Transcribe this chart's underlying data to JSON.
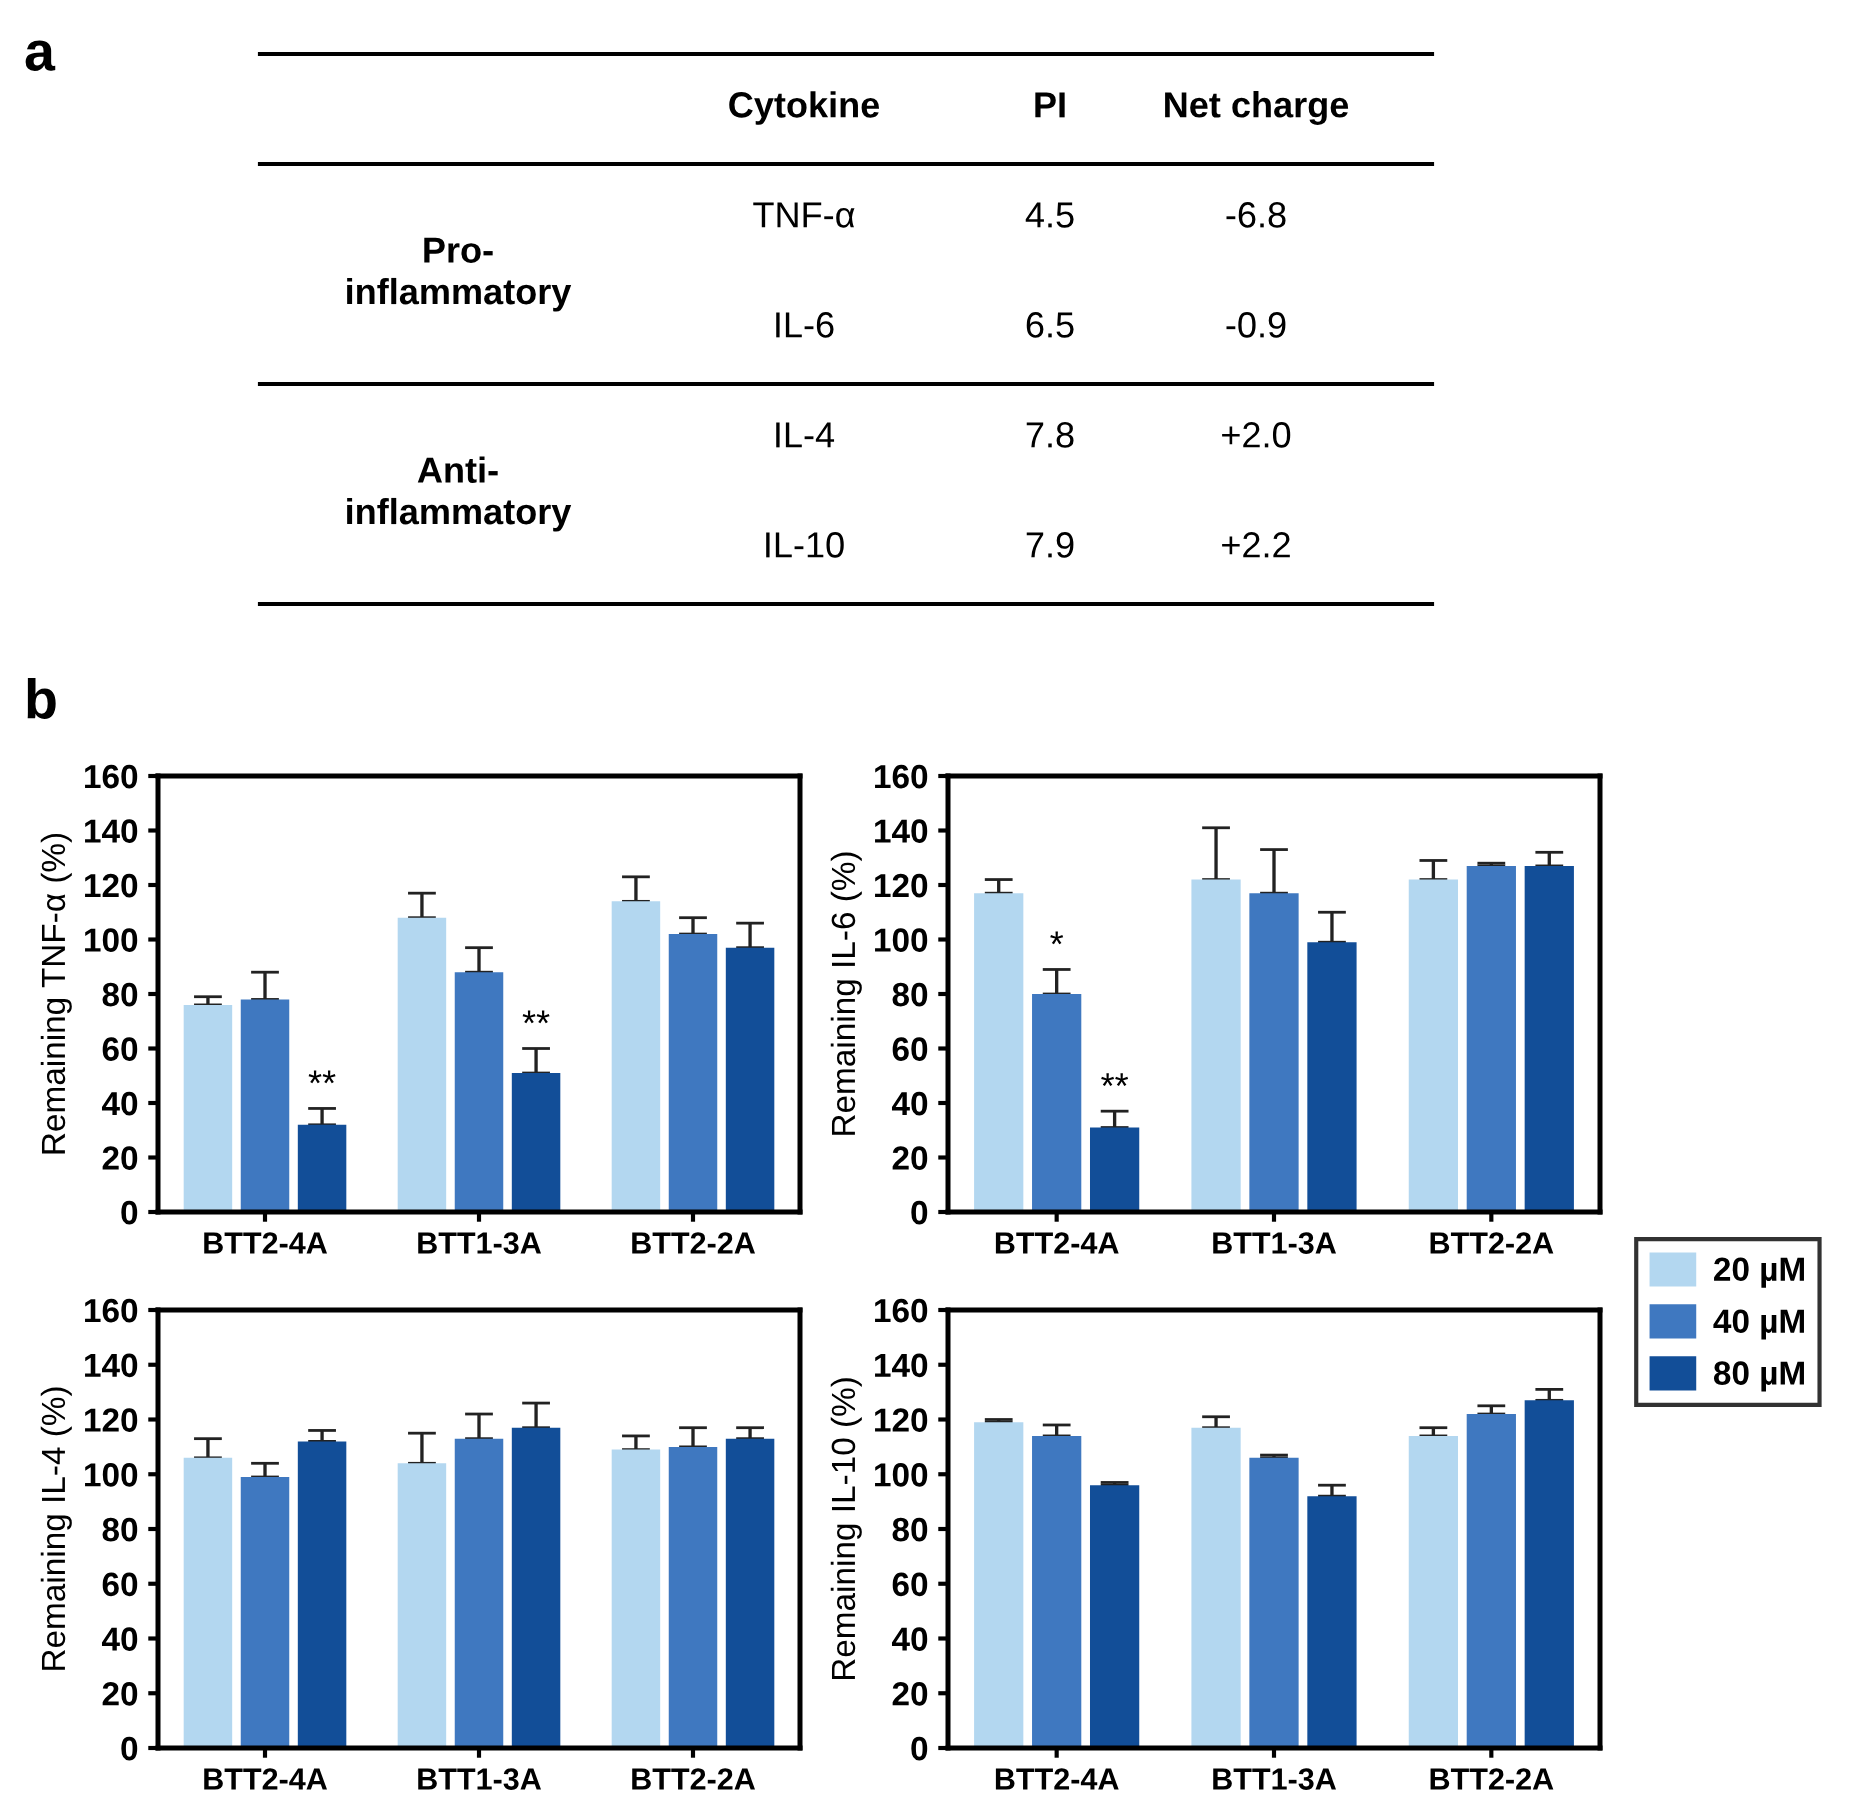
{
  "chart_data": [
    {
      "type": "other",
      "title": "a",
      "annotations": [
        "Cytokine",
        "PI",
        "Net charge",
        "Pro-\ninflammatory",
        "TNF-α",
        "4.5",
        "-6.8",
        "IL-6",
        "6.5",
        "-0.9",
        "Anti-\ninflammatory",
        "IL-4",
        "7.8",
        "+2.0",
        "IL-10",
        "7.9",
        "+2.2"
      ]
    },
    {
      "type": "bar",
      "title": "b",
      "ylabel": "Remaining TNF-α (%)",
      "categories": [
        "BTT2-4A",
        "BTT1-3A",
        "BTT2-2A"
      ],
      "ylim": [
        0,
        160
      ],
      "yticks": [
        0,
        20,
        40,
        60,
        80,
        100,
        120,
        140,
        160
      ],
      "series": [
        {
          "color": "#b3d7f0",
          "values": [
            76,
            108,
            114
          ],
          "errors": [
            [
              76,
              79
            ],
            [
              108,
              117
            ],
            [
              114,
              123
            ]
          ]
        },
        {
          "color": "#3f78c0",
          "values": [
            78,
            88,
            102
          ],
          "errors": [
            [
              78,
              88
            ],
            [
              88,
              97
            ],
            [
              102,
              108
            ]
          ]
        },
        {
          "color": "#124e98",
          "values": [
            32,
            51,
            97
          ],
          "errors": [
            [
              32,
              38
            ],
            [
              51,
              60
            ],
            [
              97,
              106
            ]
          ]
        }
      ],
      "annotations": [
        "**",
        "**"
      ]
    },
    {
      "type": "bar",
      "ylabel": "Remaining IL-6 (%)",
      "categories": [
        "BTT2-4A",
        "BTT1-3A",
        "BTT2-2A"
      ],
      "ylim": [
        0,
        160
      ],
      "yticks": [
        0,
        20,
        40,
        60,
        80,
        100,
        120,
        140,
        160
      ],
      "series": [
        {
          "color": "#b3d7f0",
          "values": [
            117,
            122,
            122
          ],
          "errors": [
            [
              117,
              122
            ],
            [
              122,
              141
            ],
            [
              122,
              129
            ]
          ]
        },
        {
          "color": "#3f78c0",
          "values": [
            80,
            117,
            127
          ],
          "errors": [
            [
              80,
              89
            ],
            [
              117,
              133
            ],
            [
              127,
              128
            ]
          ]
        },
        {
          "color": "#124e98",
          "values": [
            31,
            99,
            127
          ],
          "errors": [
            [
              31,
              37
            ],
            [
              99,
              110
            ],
            [
              127,
              132
            ]
          ]
        }
      ],
      "annotations": [
        "*",
        "**"
      ]
    },
    {
      "type": "bar",
      "ylabel": "Remaining IL-4 (%)",
      "categories": [
        "BTT2-4A",
        "BTT1-3A",
        "BTT2-2A"
      ],
      "ylim": [
        0,
        160
      ],
      "yticks": [
        0,
        20,
        40,
        60,
        80,
        100,
        120,
        140,
        160
      ],
      "series": [
        {
          "color": "#b3d7f0",
          "values": [
            106,
            104,
            109
          ],
          "errors": [
            [
              106,
              113
            ],
            [
              104,
              115
            ],
            [
              109,
              114
            ]
          ]
        },
        {
          "color": "#3f78c0",
          "values": [
            99,
            113,
            110
          ],
          "errors": [
            [
              99,
              104
            ],
            [
              113,
              122
            ],
            [
              110,
              117
            ]
          ]
        },
        {
          "color": "#124e98",
          "values": [
            112,
            117,
            113
          ],
          "errors": [
            [
              112,
              116
            ],
            [
              117,
              126
            ],
            [
              113,
              117
            ]
          ]
        }
      ]
    },
    {
      "type": "bar",
      "ylabel": "Remaining IL-10 (%)",
      "categories": [
        "BTT2-4A",
        "BTT1-3A",
        "BTT2-2A"
      ],
      "ylim": [
        0,
        160
      ],
      "yticks": [
        0,
        20,
        40,
        60,
        80,
        100,
        120,
        140,
        160
      ],
      "legend": "right",
      "series": [
        {
          "name": "20 µM",
          "color": "#b3d7f0",
          "values": [
            119,
            117,
            114
          ],
          "errors": [
            [
              119,
              120
            ],
            [
              117,
              121
            ],
            [
              114,
              117
            ]
          ]
        },
        {
          "name": "40 µM",
          "color": "#3f78c0",
          "values": [
            114,
            106,
            122
          ],
          "errors": [
            [
              114,
              118
            ],
            [
              106,
              107
            ],
            [
              122,
              125
            ]
          ]
        },
        {
          "name": "80 µM",
          "color": "#124e98",
          "values": [
            96,
            92,
            127
          ],
          "errors": [
            [
              96,
              97
            ],
            [
              92,
              96
            ],
            [
              127,
              131
            ]
          ]
        }
      ]
    }
  ]
}
